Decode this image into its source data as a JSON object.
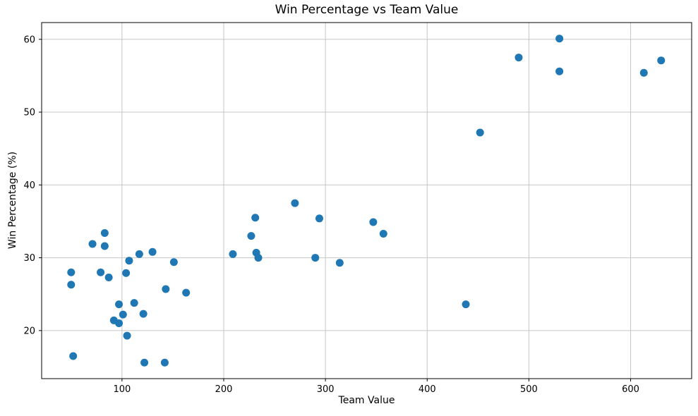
{
  "figure": {
    "background": "#ffffff"
  },
  "chart_data": {
    "type": "scatter",
    "title": "Win Percentage vs Team Value",
    "xlabel": "Team Value",
    "ylabel": "Win Percentage (%)",
    "xlim": [
      21,
      660
    ],
    "ylim": [
      13.4,
      62.3
    ],
    "xticks": [
      100,
      200,
      300,
      400,
      500,
      600
    ],
    "yticks": [
      20,
      30,
      40,
      50,
      60
    ],
    "grid": true,
    "legend_position": "none",
    "marker_color": "#1f77b4",
    "grid_color": "#c6c6c6",
    "spine_color": "#000000",
    "marker_radius": 5.5,
    "points": [
      [
        50,
        28.0
      ],
      [
        50,
        26.3
      ],
      [
        52,
        16.5
      ],
      [
        71,
        31.9
      ],
      [
        79,
        28.0
      ],
      [
        83,
        33.4
      ],
      [
        83,
        31.6
      ],
      [
        87,
        27.3
      ],
      [
        92,
        21.4
      ],
      [
        97,
        23.6
      ],
      [
        97,
        21.0
      ],
      [
        101,
        22.2
      ],
      [
        104,
        27.9
      ],
      [
        105,
        19.3
      ],
      [
        107,
        29.6
      ],
      [
        112,
        23.8
      ],
      [
        117,
        30.5
      ],
      [
        121,
        22.3
      ],
      [
        122,
        15.6
      ],
      [
        130,
        30.8
      ],
      [
        142,
        15.6
      ],
      [
        143,
        25.7
      ],
      [
        151,
        29.4
      ],
      [
        163,
        25.2
      ],
      [
        209,
        30.5
      ],
      [
        227,
        33.0
      ],
      [
        231,
        35.5
      ],
      [
        232,
        30.7
      ],
      [
        234,
        30.0
      ],
      [
        270,
        37.5
      ],
      [
        290,
        30.0
      ],
      [
        294,
        35.4
      ],
      [
        314,
        29.3
      ],
      [
        347,
        34.9
      ],
      [
        357,
        33.3
      ],
      [
        438,
        23.6
      ],
      [
        452,
        47.2
      ],
      [
        490,
        57.5
      ],
      [
        530,
        60.1
      ],
      [
        530,
        55.6
      ],
      [
        613,
        55.4
      ],
      [
        630,
        57.1
      ]
    ]
  }
}
